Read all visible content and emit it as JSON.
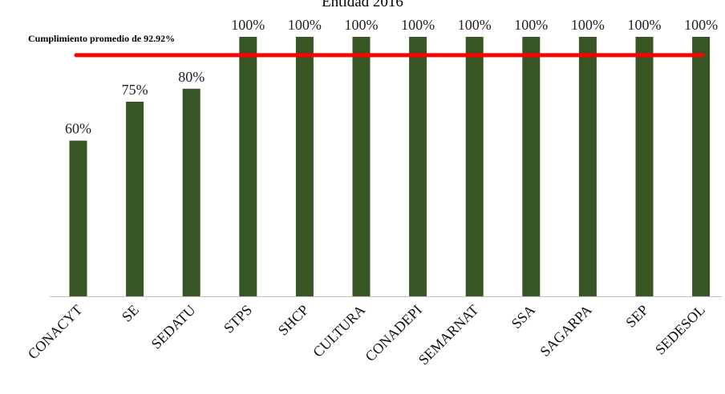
{
  "chart_data": {
    "type": "bar",
    "title": "Entidad 2016",
    "categories": [
      "CONACYT",
      "SE",
      "SEDATU",
      "STPS",
      "SHCP",
      "CULTURA",
      "CONADEPI",
      "SEMARNAT",
      "SSA",
      "SAGARPA",
      "SEP",
      "SEDESOL"
    ],
    "values": [
      60,
      75,
      80,
      100,
      100,
      100,
      100,
      100,
      100,
      100,
      100,
      100
    ],
    "data_labels": [
      "60%",
      "75%",
      "80%",
      "100%",
      "100%",
      "100%",
      "100%",
      "100%",
      "100%",
      "100%",
      "100%",
      "100%"
    ],
    "ylim": [
      0,
      100
    ],
    "xlabel": "",
    "ylabel": "",
    "grid": false,
    "legend": "none",
    "bar_color": "#375623",
    "reference_line": {
      "value": 92.92,
      "label": "Cumplimiento promedio de 92.92%",
      "color": "#ff0000"
    }
  }
}
